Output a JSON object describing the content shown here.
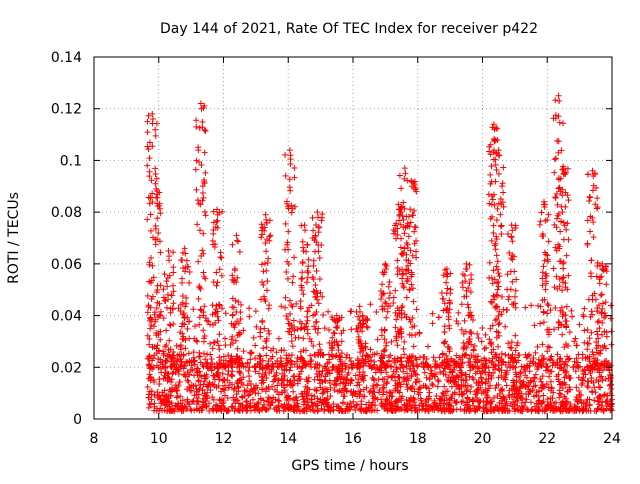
{
  "chart_data": {
    "type": "scatter",
    "title": "Day 144 of 2021, Rate Of TEC Index for receiver p422",
    "xlabel": "GPS time / hours",
    "ylabel": "ROTI / TECUs",
    "xlim": [
      8,
      24
    ],
    "ylim": [
      0,
      0.14
    ],
    "xticks": [
      8,
      10,
      12,
      14,
      16,
      18,
      20,
      22,
      24
    ],
    "xtick_labels": [
      "8",
      "10",
      "12",
      "14",
      "16",
      "18",
      "20",
      "22",
      "24"
    ],
    "yticks": [
      0,
      0.02,
      0.04,
      0.06,
      0.08,
      0.1,
      0.12,
      0.14
    ],
    "ytick_labels": [
      "0",
      "0.02",
      "0.04",
      "0.06",
      "0.08",
      "0.1",
      "0.12",
      "0.14"
    ],
    "grid": true,
    "marker": "+",
    "color": "#ff0000",
    "series": [
      {
        "name": "ROTI",
        "x_start": 9.65,
        "x_end": 24.0,
        "baseline_min": 0.003,
        "baseline_max": 0.025,
        "peaks": [
          {
            "x": 9.8,
            "y": 0.118
          },
          {
            "x": 9.9,
            "y": 0.091
          },
          {
            "x": 10.3,
            "y": 0.065
          },
          {
            "x": 10.8,
            "y": 0.066
          },
          {
            "x": 11.3,
            "y": 0.122
          },
          {
            "x": 11.8,
            "y": 0.081
          },
          {
            "x": 12.4,
            "y": 0.071
          },
          {
            "x": 13.3,
            "y": 0.079
          },
          {
            "x": 14.05,
            "y": 0.104
          },
          {
            "x": 14.5,
            "y": 0.075
          },
          {
            "x": 14.9,
            "y": 0.08
          },
          {
            "x": 15.5,
            "y": 0.04
          },
          {
            "x": 16.3,
            "y": 0.04
          },
          {
            "x": 17.0,
            "y": 0.06
          },
          {
            "x": 17.4,
            "y": 0.083
          },
          {
            "x": 17.6,
            "y": 0.097
          },
          {
            "x": 17.8,
            "y": 0.092
          },
          {
            "x": 18.9,
            "y": 0.058
          },
          {
            "x": 19.5,
            "y": 0.06
          },
          {
            "x": 20.35,
            "y": 0.114
          },
          {
            "x": 20.5,
            "y": 0.104
          },
          {
            "x": 20.9,
            "y": 0.075
          },
          {
            "x": 21.9,
            "y": 0.084
          },
          {
            "x": 22.35,
            "y": 0.125
          },
          {
            "x": 22.5,
            "y": 0.097
          },
          {
            "x": 23.4,
            "y": 0.096
          },
          {
            "x": 23.7,
            "y": 0.06
          }
        ]
      }
    ]
  }
}
